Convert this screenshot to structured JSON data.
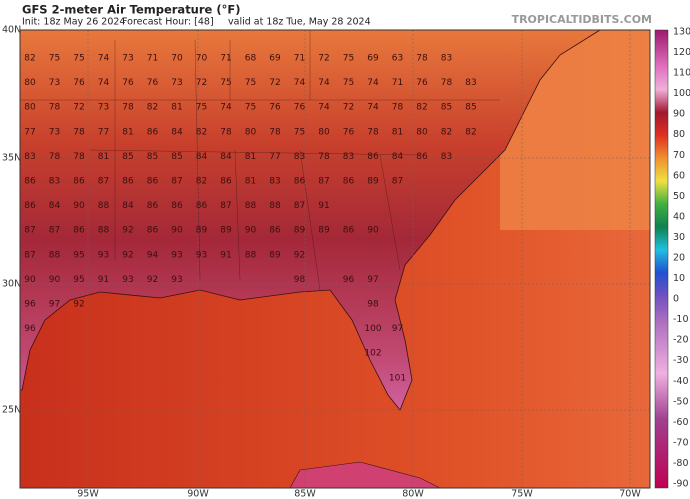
{
  "header": {
    "title": "GFS 2-meter Air Temperature (°F)",
    "init": "Init: 18z May 26 2024",
    "forecast_hour": "Forecast Hour: [48]",
    "valid": "valid at 18z Tue, May 28 2024",
    "watermark": "TROPICALTIDBITS.COM"
  },
  "lat_labels": [
    "40N",
    "35N",
    "30N",
    "25N"
  ],
  "lon_labels": [
    "95W",
    "90W",
    "85W",
    "80W",
    "75W",
    "70W"
  ],
  "colorbar": {
    "labels": [
      130,
      120,
      110,
      100,
      90,
      80,
      70,
      60,
      50,
      40,
      30,
      20,
      10,
      0,
      -10,
      -20,
      -30,
      -40,
      -50,
      -60,
      -70,
      -80,
      -90
    ]
  },
  "stations": [
    [
      82,
      75,
      75,
      74,
      73,
      71,
      70,
      70,
      71,
      68,
      69,
      71,
      72,
      75,
      69,
      63,
      78,
      83
    ],
    [
      80,
      73,
      76,
      74,
      76,
      76,
      73,
      72,
      75,
      75,
      72,
      74,
      74,
      75,
      74,
      71,
      76,
      78,
      83
    ],
    [
      80,
      78,
      72,
      73,
      78,
      82,
      81,
      75,
      74,
      75,
      76,
      76,
      74,
      72,
      74,
      78,
      82,
      85,
      85
    ],
    [
      77,
      73,
      78,
      77,
      81,
      86,
      84,
      82,
      78,
      80,
      78,
      75,
      80,
      76,
      78,
      81,
      80,
      82,
      82
    ],
    [
      83,
      78,
      78,
      81,
      85,
      85,
      85,
      84,
      84,
      81,
      77,
      83,
      78,
      83,
      86,
      84,
      86,
      83
    ],
    [
      86,
      83,
      86,
      87,
      86,
      86,
      87,
      82,
      86,
      81,
      83,
      86,
      87,
      86,
      89,
      87
    ],
    [
      86,
      84,
      90,
      88,
      84,
      86,
      86,
      86,
      87,
      88,
      88,
      87,
      91
    ],
    [
      87,
      87,
      86,
      88,
      92,
      86,
      90,
      89,
      89,
      90,
      86,
      89,
      89,
      86,
      90
    ],
    [
      87,
      88,
      95,
      93,
      92,
      94,
      93,
      93,
      91,
      88,
      89,
      92
    ],
    [
      90,
      90,
      95,
      91,
      93,
      92,
      93,
      null,
      null,
      null,
      null,
      98,
      null,
      96,
      97
    ],
    [
      96,
      97,
      92,
      null,
      null,
      null,
      null,
      null,
      null,
      null,
      null,
      null,
      null,
      null,
      98
    ],
    [
      96,
      null,
      null,
      null,
      null,
      null,
      null,
      null,
      null,
      null,
      null,
      null,
      null,
      null,
      100,
      97
    ],
    [
      null,
      null,
      null,
      null,
      null,
      null,
      null,
      null,
      null,
      null,
      null,
      null,
      null,
      null,
      102
    ],
    [
      null,
      null,
      null,
      null,
      null,
      null,
      null,
      null,
      null,
      null,
      null,
      null,
      null,
      null,
      null,
      101
    ]
  ]
}
